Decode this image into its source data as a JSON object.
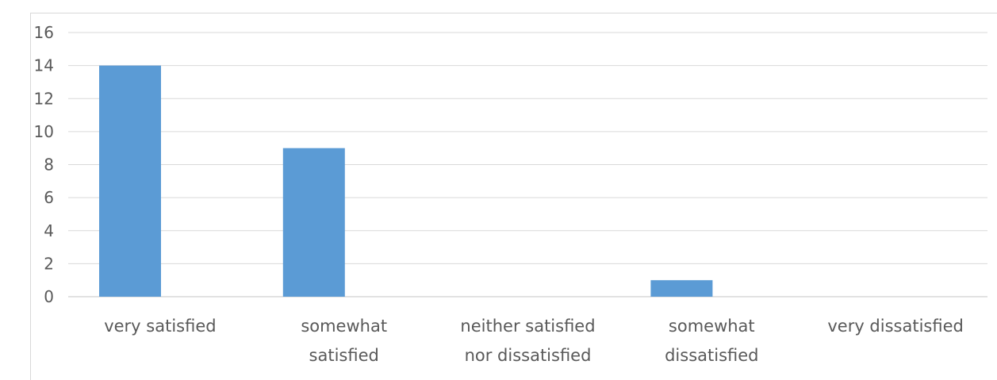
{
  "chart_data": {
    "type": "bar",
    "categories": [
      [
        "very satisfied"
      ],
      [
        "somewhat",
        "satisfied"
      ],
      [
        "neither satisfied",
        "nor dissatisfied"
      ],
      [
        "somewhat",
        "dissatisfied"
      ],
      [
        "very dissatisfied"
      ]
    ],
    "values": [
      14,
      9,
      0,
      1,
      0
    ],
    "title": "",
    "xlabel": "",
    "ylabel": "",
    "ylim": [
      0,
      16
    ],
    "yticks": [
      "0",
      "2",
      "4",
      "6",
      "8",
      "10",
      "12",
      "14",
      "16"
    ],
    "grid": true,
    "legend": "none",
    "colors": {
      "bar": "#5b9bd5",
      "grid": "#d9d9d9",
      "text": "#595959"
    }
  }
}
